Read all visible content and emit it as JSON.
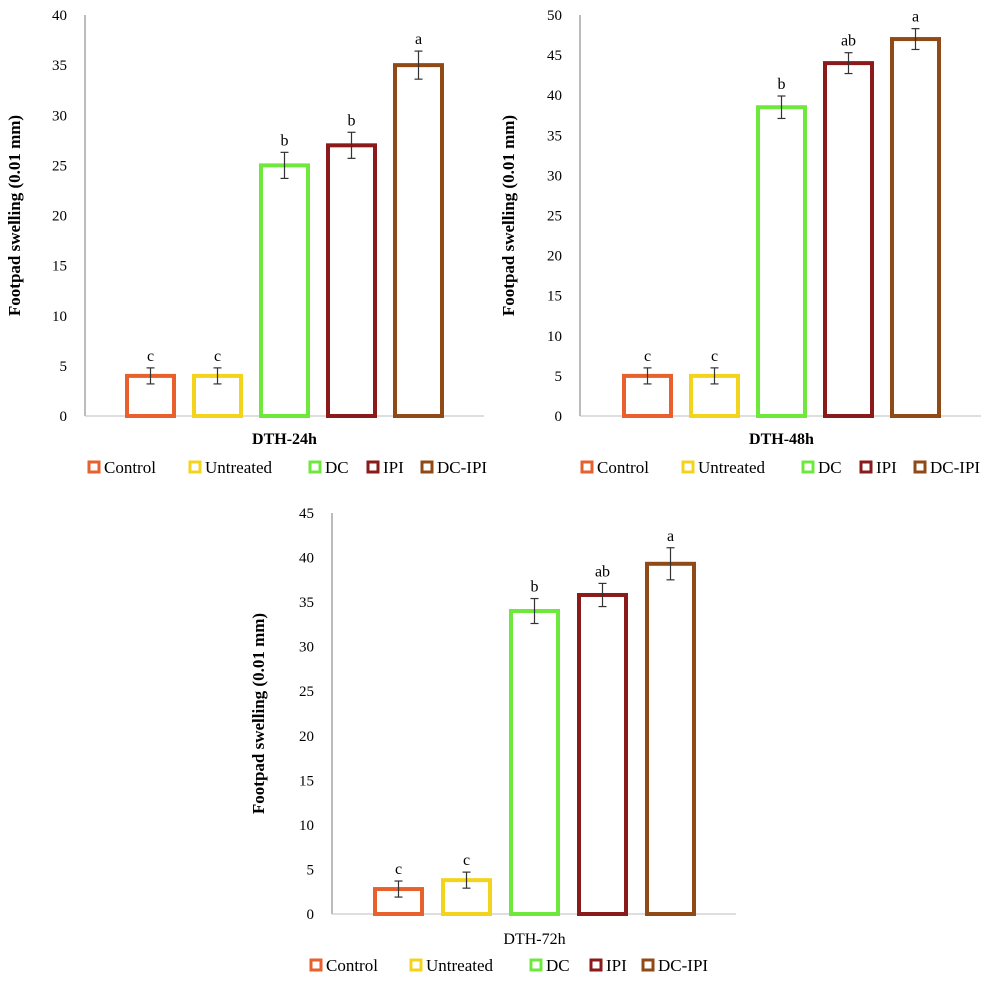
{
  "chart_data": [
    {
      "type": "bar",
      "categories": [
        "DTH-24h"
      ],
      "xlabel": "DTH-24h",
      "ylabel": "Footpad swelling (0.01 mm)",
      "ylim": [
        0,
        40
      ],
      "yticks": [
        0,
        5,
        10,
        15,
        20,
        25,
        30,
        35,
        40
      ],
      "series": [
        {
          "name": "Control",
          "value": 4.0,
          "error": 0.8,
          "sig": "c",
          "color": "#E8602C"
        },
        {
          "name": "Untreated",
          "value": 4.0,
          "error": 0.8,
          "sig": "c",
          "color": "#F4D31C"
        },
        {
          "name": "DC",
          "value": 25.0,
          "error": 1.3,
          "sig": "b",
          "color": "#6EE83C"
        },
        {
          "name": "IPI",
          "value": 27.0,
          "error": 1.3,
          "sig": "b",
          "color": "#8B1A1A"
        },
        {
          "name": "DC-IPI",
          "value": 35.0,
          "error": 1.4,
          "sig": "a",
          "color": "#8F4A16"
        }
      ],
      "legend_position": "bottom",
      "grid": false
    },
    {
      "type": "bar",
      "categories": [
        "DTH-48h"
      ],
      "xlabel": "DTH-48h",
      "ylabel": "Footpad swelling (0.01 mm)",
      "ylim": [
        0,
        50
      ],
      "yticks": [
        0,
        5,
        10,
        15,
        20,
        25,
        30,
        35,
        40,
        45,
        50
      ],
      "series": [
        {
          "name": "Control",
          "value": 5.0,
          "error": 1.0,
          "sig": "c",
          "color": "#E8602C"
        },
        {
          "name": "Untreated",
          "value": 5.0,
          "error": 1.0,
          "sig": "c",
          "color": "#F4D31C"
        },
        {
          "name": "DC",
          "value": 38.5,
          "error": 1.4,
          "sig": "b",
          "color": "#6EE83C"
        },
        {
          "name": "IPI",
          "value": 44.0,
          "error": 1.3,
          "sig": "ab",
          "color": "#8B1A1A"
        },
        {
          "name": "DC-IPI",
          "value": 47.0,
          "error": 1.3,
          "sig": "a",
          "color": "#8F4A16"
        }
      ],
      "legend_position": "bottom",
      "grid": false
    },
    {
      "type": "bar",
      "categories": [
        "DTH-72h"
      ],
      "xlabel": "DTH-72h",
      "ylabel": "Footpad swelling (0.01 mm)",
      "ylim": [
        0,
        45
      ],
      "yticks": [
        0,
        5,
        10,
        15,
        20,
        25,
        30,
        35,
        40,
        45
      ],
      "series": [
        {
          "name": "Control",
          "value": 2.8,
          "error": 0.9,
          "sig": "c",
          "color": "#E8602C"
        },
        {
          "name": "Untreated",
          "value": 3.8,
          "error": 0.9,
          "sig": "c",
          "color": "#F4D31C"
        },
        {
          "name": "DC",
          "value": 34.0,
          "error": 1.4,
          "sig": "b",
          "color": "#6EE83C"
        },
        {
          "name": "IPI",
          "value": 35.8,
          "error": 1.3,
          "sig": "ab",
          "color": "#8B1A1A"
        },
        {
          "name": "DC-IPI",
          "value": 39.3,
          "error": 1.8,
          "sig": "a",
          "color": "#8F4A16"
        }
      ],
      "legend_position": "bottom",
      "grid": false
    }
  ]
}
